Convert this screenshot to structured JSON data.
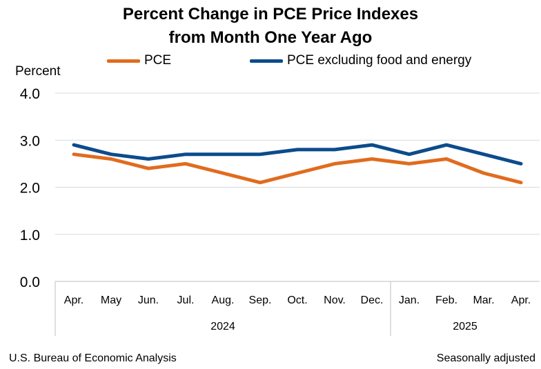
{
  "chart_data": {
    "type": "line",
    "title_line1": "Percent Change in PCE Price Indexes",
    "title_line2": "from Month One Year Ago",
    "ylabel": "Percent",
    "ylim": [
      0,
      4
    ],
    "yticks": [
      "0.0",
      "1.0",
      "2.0",
      "3.0",
      "4.0"
    ],
    "ytick_values": [
      0,
      1,
      2,
      3,
      4
    ],
    "grid": true,
    "categories": [
      "Apr.",
      "May",
      "Jun.",
      "Jul.",
      "Aug.",
      "Sep.",
      "Oct.",
      "Nov.",
      "Dec.",
      "Jan.",
      "Feb.",
      "Mar.",
      "Apr."
    ],
    "year_groups": [
      {
        "label": "2024",
        "count": 9
      },
      {
        "label": "2025",
        "count": 4
      }
    ],
    "series": [
      {
        "name": "PCE",
        "color": "#E06C1E",
        "values": [
          2.7,
          2.6,
          2.4,
          2.5,
          2.3,
          2.1,
          2.3,
          2.5,
          2.6,
          2.5,
          2.6,
          2.3,
          2.1
        ]
      },
      {
        "name": "PCE excluding food and energy",
        "color": "#0B4C8C",
        "values": [
          2.9,
          2.7,
          2.6,
          2.7,
          2.7,
          2.7,
          2.8,
          2.8,
          2.9,
          2.7,
          2.9,
          2.7,
          2.5
        ]
      }
    ]
  },
  "footer": {
    "source": "U.S. Bureau of Economic Analysis",
    "note": "Seasonally adjusted"
  }
}
